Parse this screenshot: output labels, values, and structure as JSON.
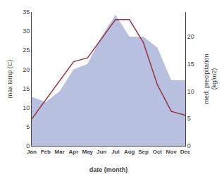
{
  "chart_data": {
    "type": "line",
    "categories": [
      "Jan",
      "Feb",
      "Mar",
      "Apr",
      "May",
      "Jun",
      "Jul",
      "Aug",
      "Sep",
      "Oct",
      "Nov",
      "Dec"
    ],
    "xlabel": "date (month)",
    "ylabel": "max temp (C)",
    "y2label": "med. precipitation\n(kg/m2)",
    "series": [
      {
        "type": "area",
        "axis": "y2",
        "color": "#b8c0e0",
        "values": [
          9,
          8,
          10,
          14,
          15,
          20,
          24,
          20,
          20,
          18,
          12,
          12
        ]
      },
      {
        "type": "line",
        "color": "#993344",
        "values": [
          7,
          12,
          17,
          22,
          23,
          28,
          33,
          33,
          27,
          16,
          9,
          8
        ]
      }
    ],
    "ylim": [
      0,
      35
    ],
    "yticks": [
      0,
      5,
      10,
      15,
      20,
      25,
      30,
      35
    ],
    "y2lim": [
      0,
      24.5
    ],
    "y2ticks": [
      0,
      5,
      10,
      15,
      20
    ],
    "grid": false
  }
}
